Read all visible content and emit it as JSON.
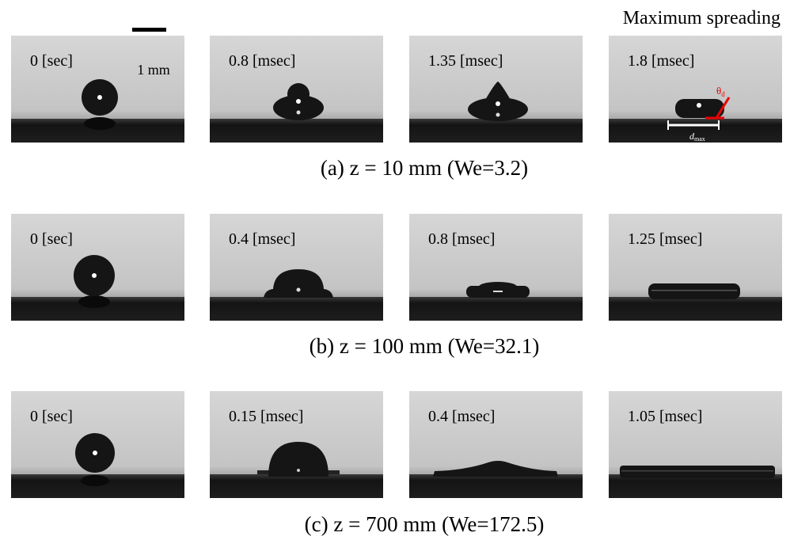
{
  "header": "Maximum spreading",
  "scale_bar": "1 mm",
  "annotations": {
    "theta": "θ",
    "theta_sub": "d",
    "dmax": "d",
    "dmax_sub": "max"
  },
  "rows": [
    {
      "caption": "(a) z = 10 mm (We=3.2)",
      "panels": [
        "0 [sec]",
        "0.8 [msec]",
        "1.35 [msec]",
        "1.8 [msec]"
      ]
    },
    {
      "caption": "(b) z = 100 mm (We=32.1)",
      "panels": [
        "0 [sec]",
        "0.4 [msec]",
        "0.8 [msec]",
        "1.25 [msec]"
      ]
    },
    {
      "caption": "(c) z = 700 mm (We=172.5)",
      "panels": [
        "0 [sec]",
        "0.15 [msec]",
        "0.4 [msec]",
        "1.05 [msec]"
      ]
    }
  ]
}
